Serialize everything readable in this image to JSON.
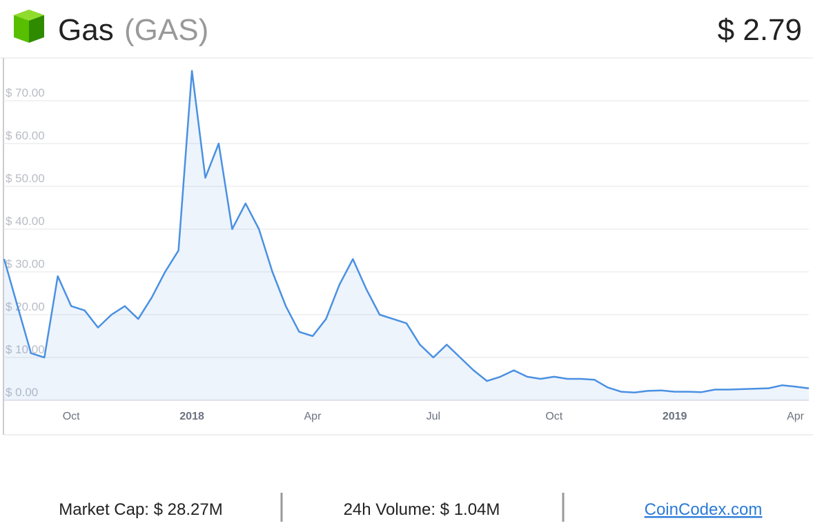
{
  "header": {
    "name": "Gas",
    "symbol": "(GAS)",
    "price": "$ 2.79"
  },
  "chart_data": {
    "type": "line",
    "categories": [
      null,
      null,
      null,
      null,
      null,
      "Oct",
      null,
      null,
      null,
      null,
      null,
      null,
      null,
      null,
      "2018",
      null,
      null,
      null,
      null,
      null,
      null,
      null,
      null,
      "Apr",
      null,
      null,
      null,
      null,
      null,
      null,
      null,
      null,
      "Jul",
      null,
      null,
      null,
      null,
      null,
      null,
      null,
      null,
      "Oct",
      null,
      null,
      null,
      null,
      null,
      null,
      null,
      null,
      "2019",
      null,
      null,
      null,
      null,
      null,
      null,
      null,
      null,
      "Apr",
      null
    ],
    "values": [
      33,
      22,
      11,
      10,
      29,
      22,
      21,
      17,
      20,
      22,
      19,
      24,
      30,
      35,
      77,
      52,
      60,
      40,
      46,
      40,
      30,
      22,
      16,
      15,
      19,
      27,
      33,
      26,
      20,
      19,
      18,
      13,
      10,
      13,
      10,
      7,
      4.5,
      5.5,
      7,
      5.5,
      5,
      5.5,
      5,
      5,
      4.8,
      3,
      2,
      1.8,
      2.2,
      2.3,
      2,
      2,
      1.9,
      2.5,
      2.5,
      2.6,
      2.7,
      2.8,
      3.5,
      3.2,
      2.79
    ],
    "color": "#4a90e2",
    "ylim": [
      0,
      80
    ],
    "yticks": [
      {
        "value": 0,
        "label": "$ 0.00"
      },
      {
        "value": 10,
        "label": "$ 10.00"
      },
      {
        "value": 20,
        "label": "$ 20.00"
      },
      {
        "value": 30,
        "label": "$ 30.00"
      },
      {
        "value": 40,
        "label": "$ 40.00"
      },
      {
        "value": 50,
        "label": "$ 50.00"
      },
      {
        "value": 60,
        "label": "$ 60.00"
      },
      {
        "value": 70,
        "label": "$ 70.00"
      }
    ],
    "grid": true
  },
  "footer": {
    "market_cap": "Market Cap: $ 28.27M",
    "volume": "24h Volume: $ 1.04M",
    "link": "CoinCodex.com"
  }
}
